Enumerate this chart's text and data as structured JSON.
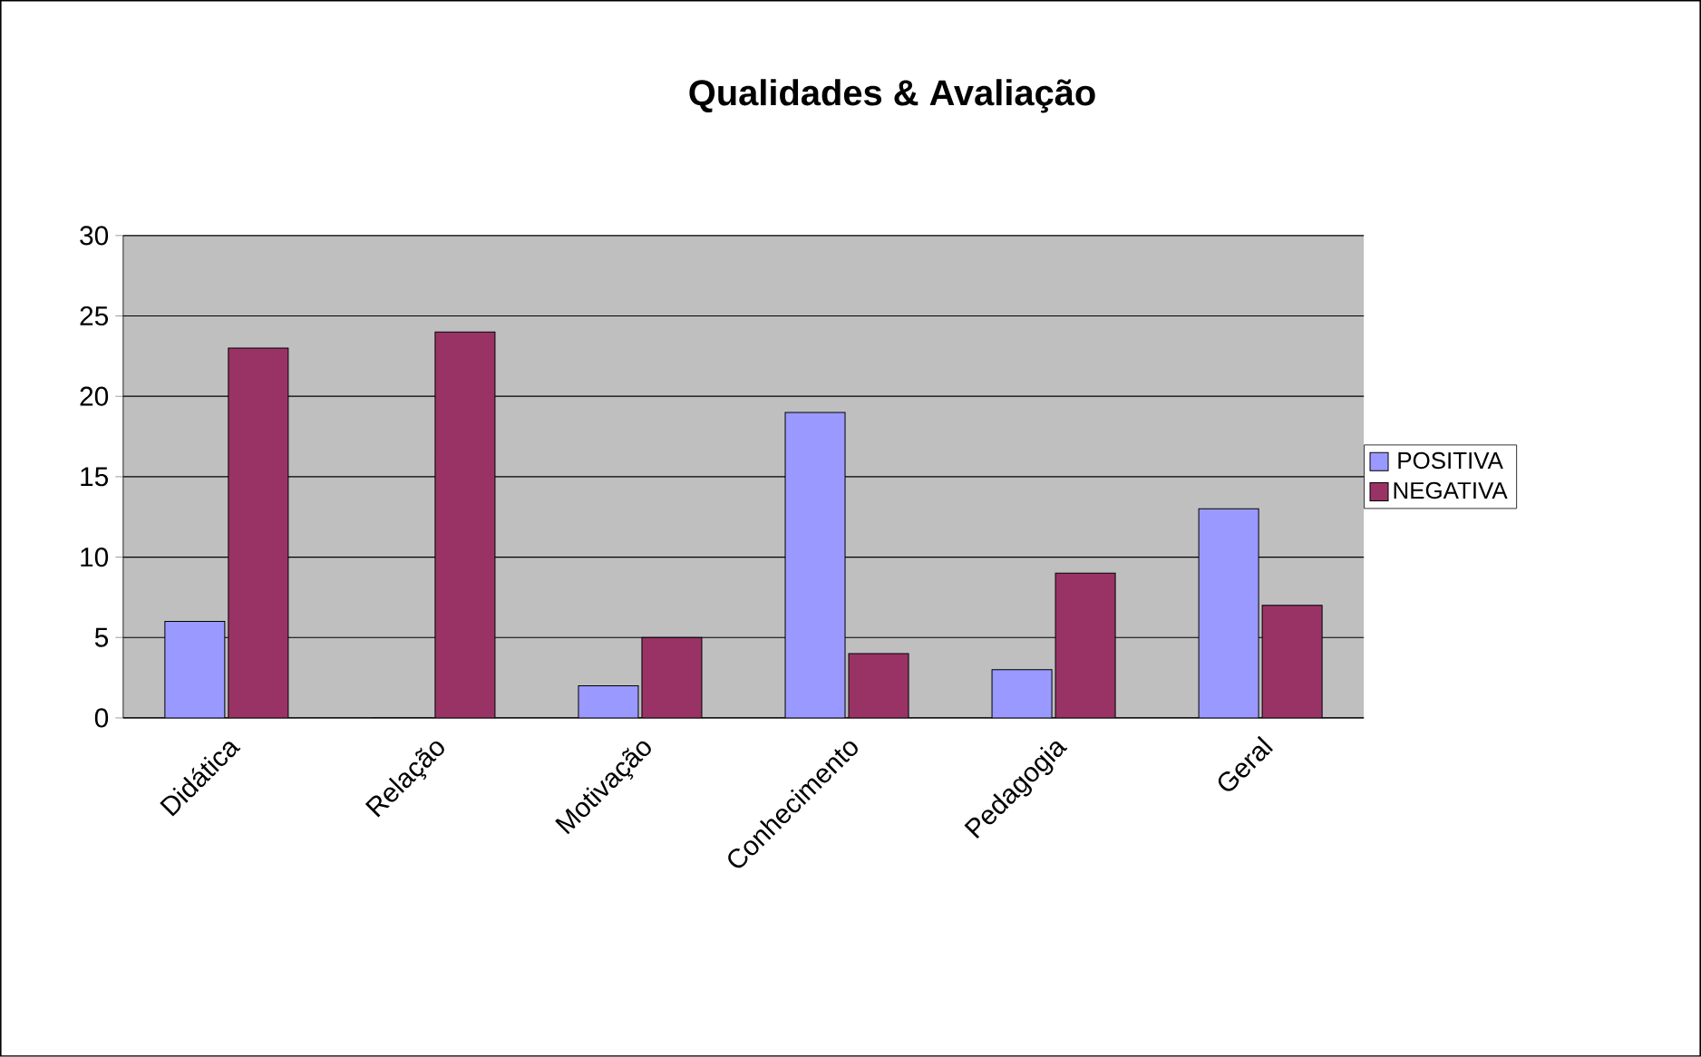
{
  "chart_data": {
    "type": "bar",
    "title": "Qualidades & Avaliação",
    "categories": [
      "Didática",
      "Relação",
      "Motivação",
      "Conhecimento",
      "Pedagogia",
      "Geral"
    ],
    "series": [
      {
        "name": "POSITIVA",
        "color": "#9999ff",
        "values": [
          6,
          0,
          2,
          19,
          3,
          13
        ]
      },
      {
        "name": "NEGATIVA",
        "color": "#993366",
        "values": [
          23,
          24,
          5,
          4,
          9,
          7
        ]
      }
    ],
    "ylim": [
      0,
      30
    ],
    "yticks": [
      0,
      5,
      10,
      15,
      20,
      25,
      30
    ],
    "grid": "y",
    "legend": "right"
  }
}
